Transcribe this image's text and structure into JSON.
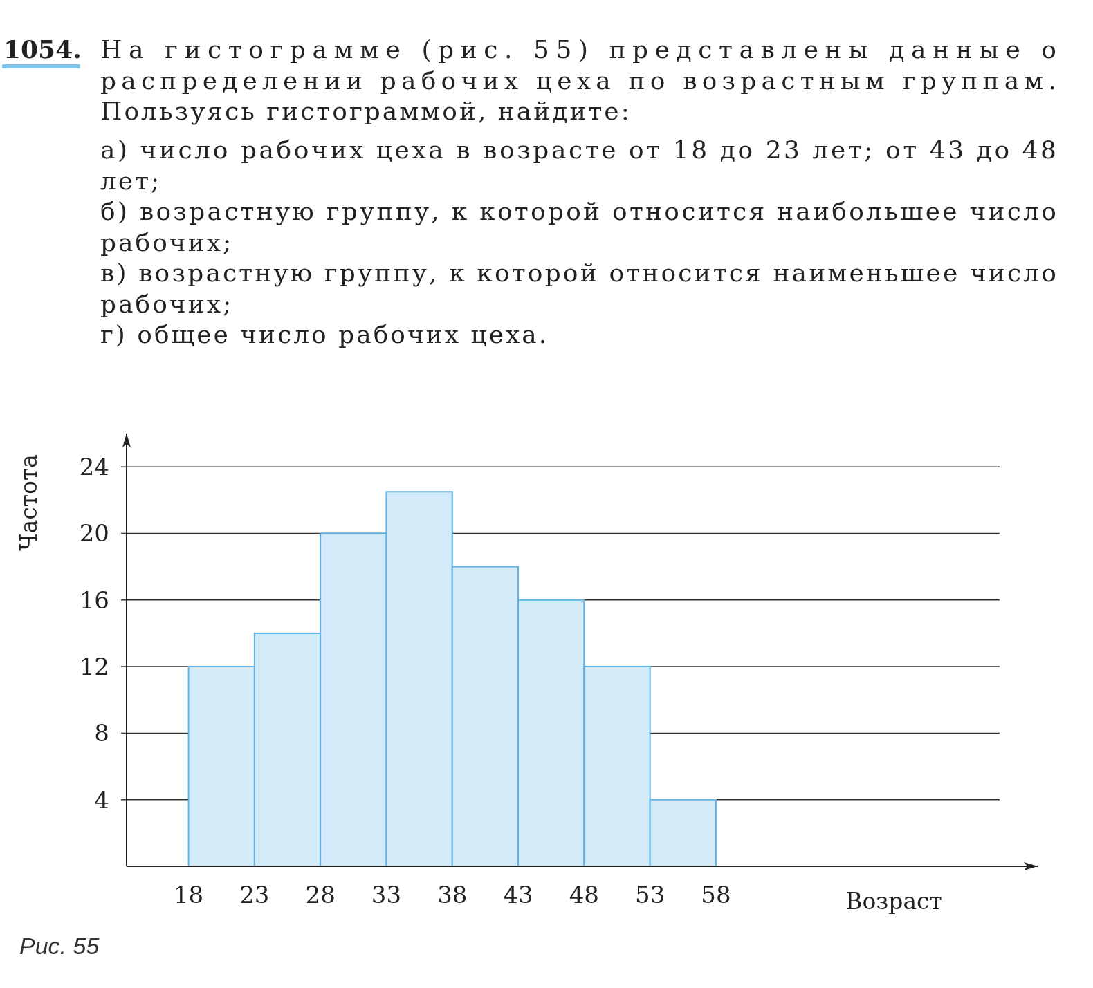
{
  "chart_data": {
    "type": "histogram",
    "title": "1054. На гистограмме (рис. 55) представлены данные о распределении рабочих цеха по возрастным группам. Пользуясь гистограммой, найдите:",
    "annotations": [
      "а) число рабочих цеха в возрасте от 18 до 23 лет; от 43 до 48 лет;",
      "б) возрастную группу, к которой относится наибольшее число рабочих;",
      "в) возрастную группу, к которой относится наименьшее число рабочих;",
      "г) общее число рабочих цеха.",
      "Рис. 55"
    ],
    "xlabel": "Возраст",
    "ylabel": "Частота",
    "bins": [
      18,
      23,
      28,
      33,
      38,
      43,
      48,
      53,
      58
    ],
    "values": [
      12,
      14,
      20,
      22.5,
      18,
      16,
      12,
      4
    ],
    "color": "#d3ebf9",
    "xlim": [
      13.3,
      82.4
    ],
    "ylim": [
      0,
      26
    ],
    "xticks": [
      18,
      23,
      28,
      33,
      38,
      43,
      48,
      53,
      58
    ],
    "yticks": [
      4,
      8,
      12,
      16,
      20,
      24
    ],
    "grid": "y"
  }
}
